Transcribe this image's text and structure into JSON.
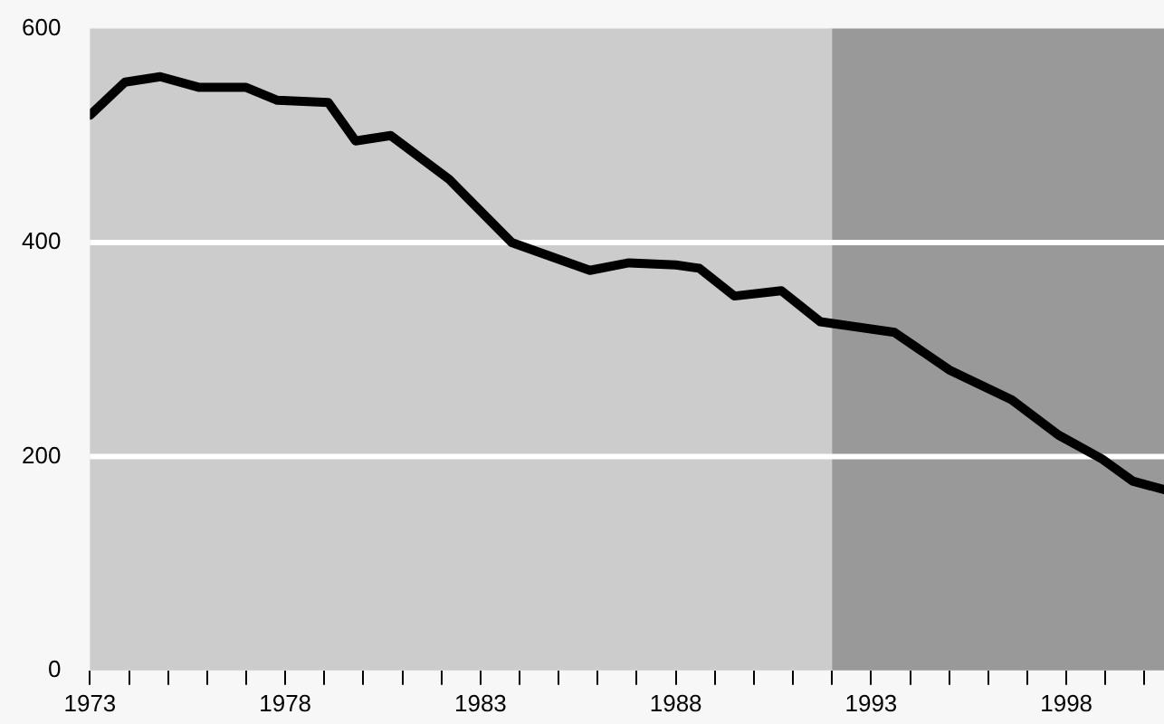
{
  "chart_data": {
    "type": "line",
    "x": [
      1973,
      1973.9,
      1974.8,
      1975.8,
      1977,
      1977.8,
      1979.1,
      1979.8,
      1980.7,
      1982.2,
      1983.8,
      1985.8,
      1986.8,
      1988,
      1988.6,
      1989.5,
      1990.7,
      1991.7,
      1993.6,
      1995,
      1996.6,
      1997.8,
      1998.9,
      1999.7,
      2000.5
    ],
    "series": [
      {
        "color": "#000000",
        "values": [
          519,
          550,
          555,
          545,
          545,
          533,
          531,
          495,
          500,
          459,
          400,
          374,
          381,
          379,
          376,
          350,
          355,
          326,
          316,
          281,
          253,
          220,
          198,
          177,
          169
        ]
      }
    ],
    "xlim": [
      1973,
      2000.5
    ],
    "xticks": [
      {
        "value": 1973,
        "label": "1973"
      },
      {
        "value": 1974,
        "label": null
      },
      {
        "value": 1975,
        "label": null
      },
      {
        "value": 1976,
        "label": null
      },
      {
        "value": 1977,
        "label": null
      },
      {
        "value": 1978,
        "label": "1978"
      },
      {
        "value": 1979,
        "label": null
      },
      {
        "value": 1980,
        "label": null
      },
      {
        "value": 1981,
        "label": null
      },
      {
        "value": 1982,
        "label": null
      },
      {
        "value": 1983,
        "label": "1983"
      },
      {
        "value": 1984,
        "label": null
      },
      {
        "value": 1985,
        "label": null
      },
      {
        "value": 1986,
        "label": null
      },
      {
        "value": 1987,
        "label": null
      },
      {
        "value": 1988,
        "label": "1988"
      },
      {
        "value": 1989,
        "label": null
      },
      {
        "value": 1990,
        "label": null
      },
      {
        "value": 1991,
        "label": null
      },
      {
        "value": 1992,
        "label": null
      },
      {
        "value": 1993,
        "label": "1993"
      },
      {
        "value": 1994,
        "label": null
      },
      {
        "value": 1995,
        "label": null
      },
      {
        "value": 1996,
        "label": null
      },
      {
        "value": 1997,
        "label": null
      },
      {
        "value": 1998,
        "label": "1998"
      },
      {
        "value": 1999,
        "label": null
      },
      {
        "value": 2000,
        "label": null
      }
    ],
    "ylim": [
      0,
      600
    ],
    "yticks": [
      0,
      200,
      400,
      600
    ],
    "grid": "y",
    "marker": "none",
    "line_style": "solid",
    "bands": [
      {
        "axis": "x",
        "from": 1973,
        "to": 1992,
        "color": "#cccccc"
      },
      {
        "axis": "x",
        "from": 1992,
        "to": 2000.5,
        "color": "#999999"
      }
    ]
  }
}
